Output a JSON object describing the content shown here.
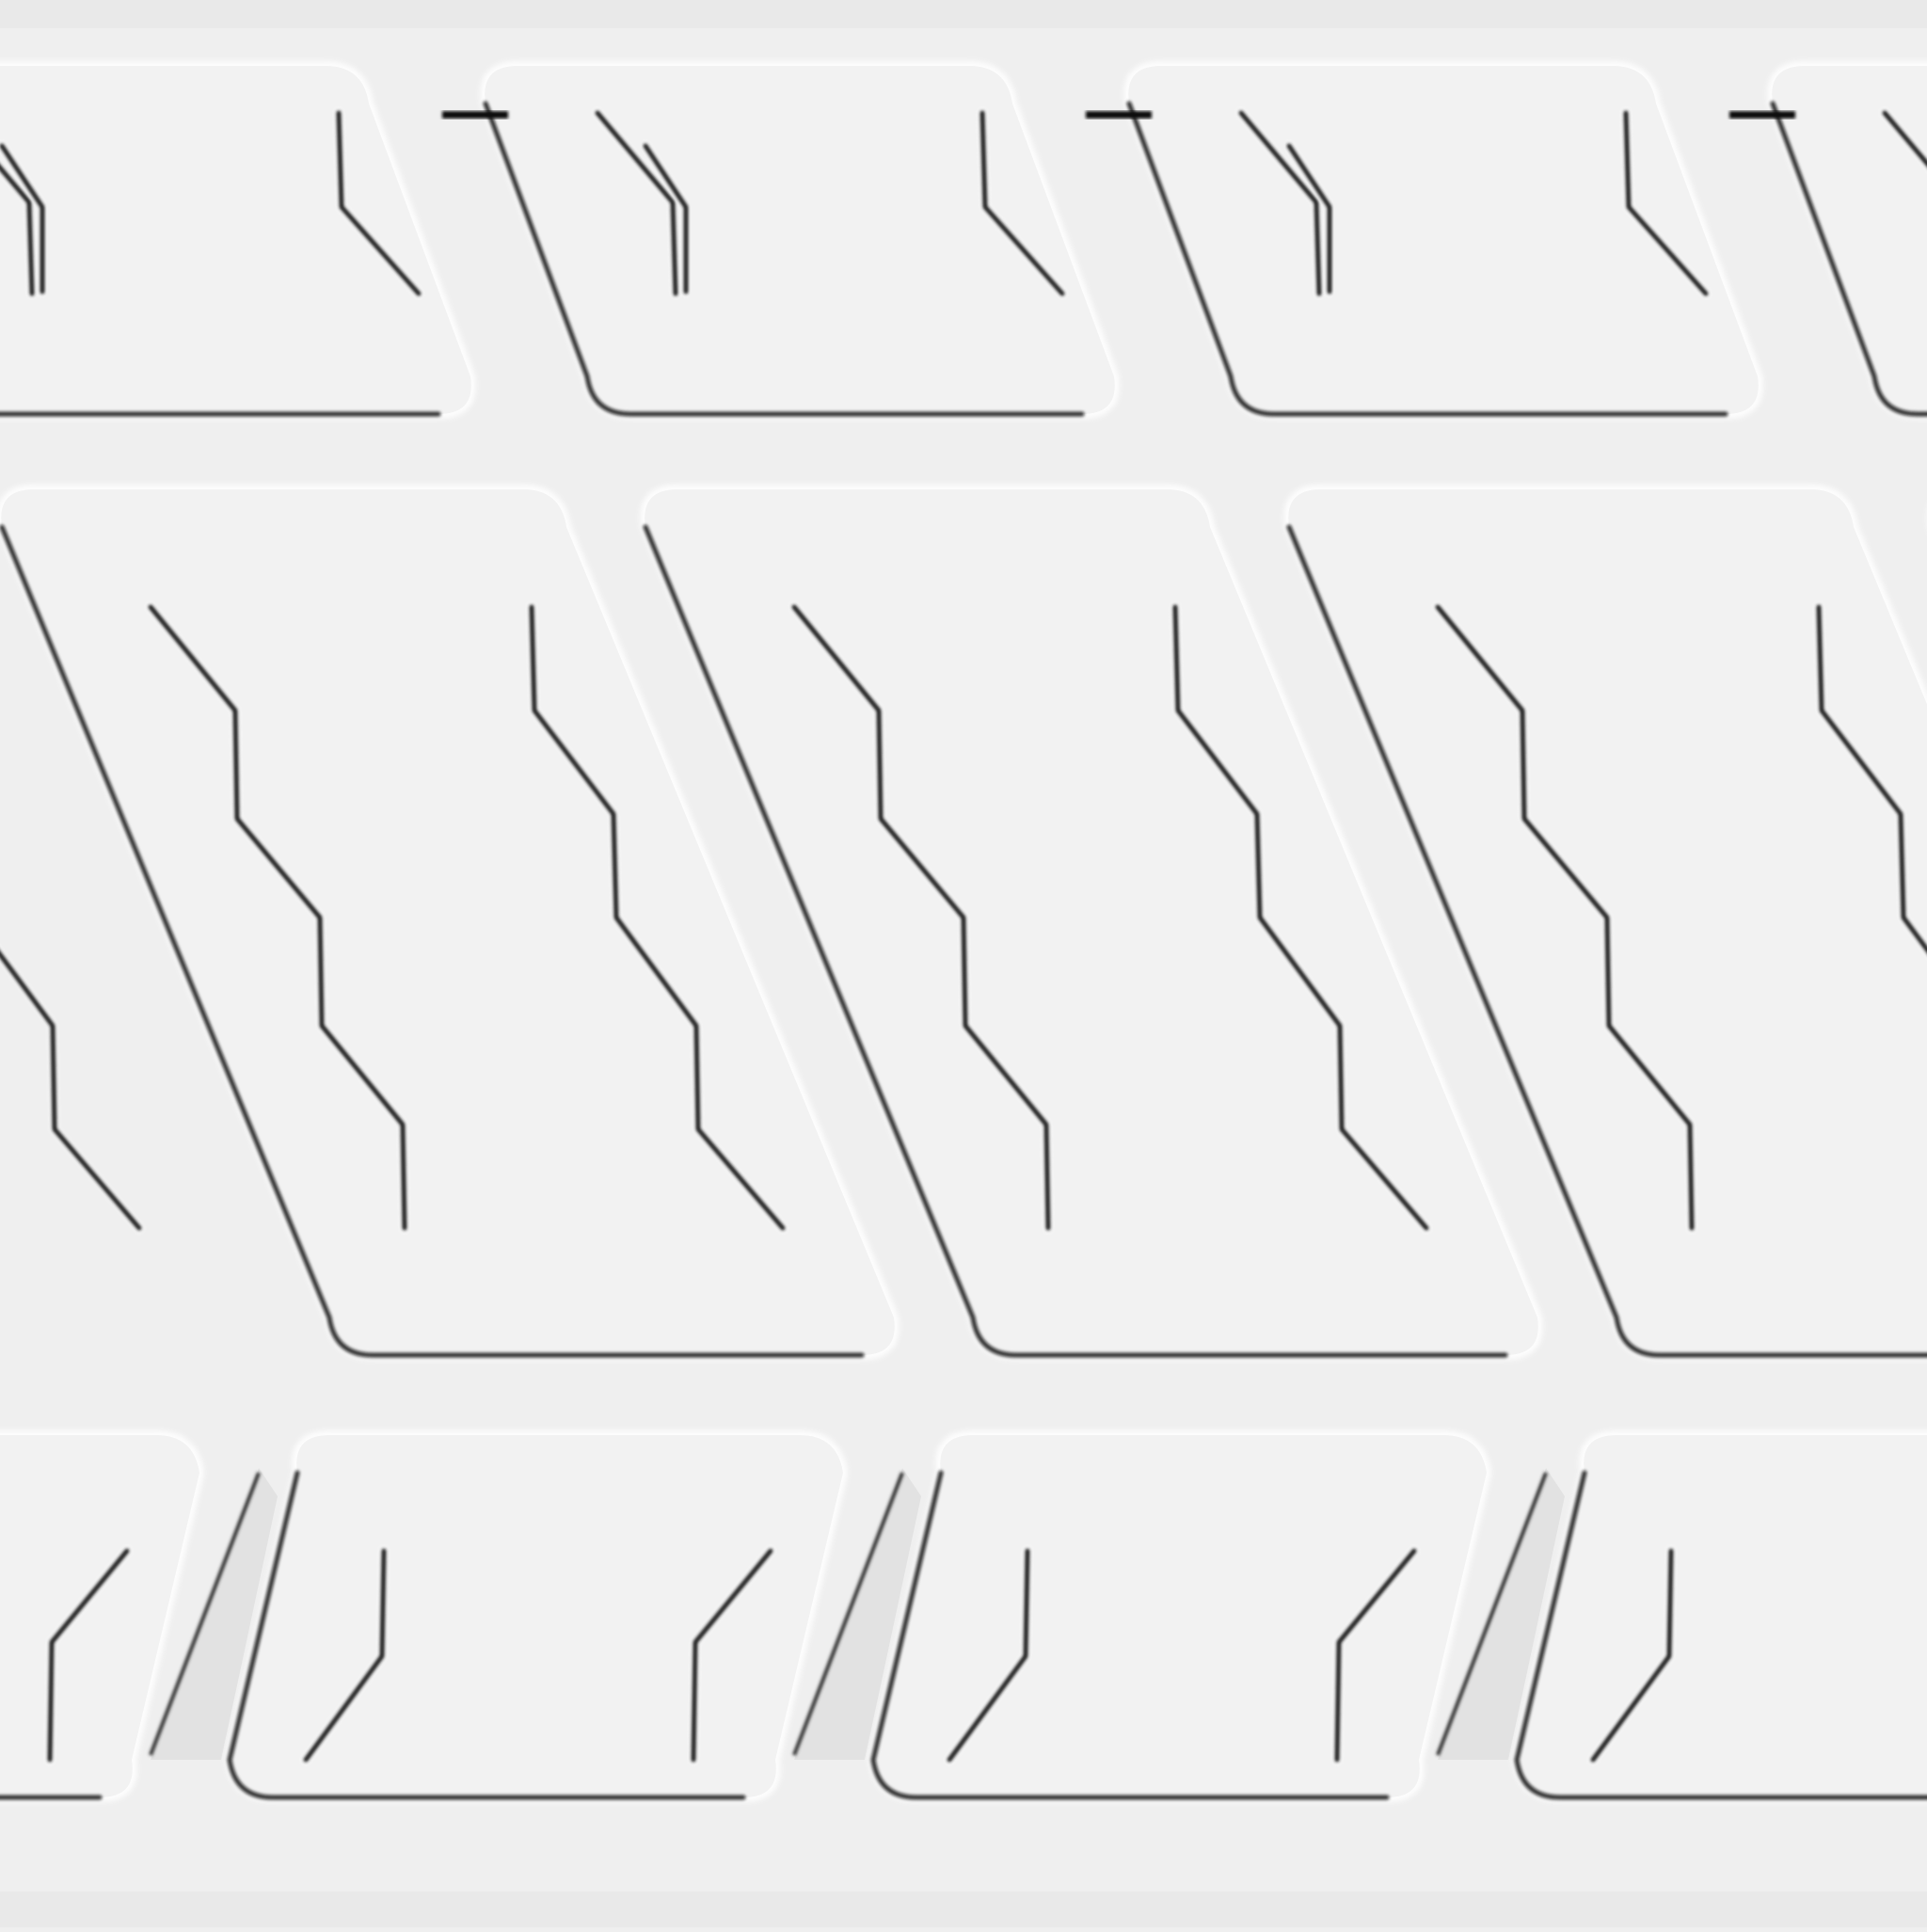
{
  "texture": {
    "kind": "tire-tread-relief",
    "description_visible_text": "",
    "colors": {
      "surface": "#efefef",
      "block": "#f2f2f2",
      "groove": "#e4e4e4",
      "shadow": "#0b0b0b",
      "highlight": "#ffffff"
    },
    "rows": [
      {
        "name": "top-row",
        "block_count": 4,
        "sipes_per_block": 3
      },
      {
        "name": "middle-row",
        "block_count": 4,
        "sipes_per_block": 2
      },
      {
        "name": "bottom-row",
        "block_count": 4,
        "sipes_per_block": 2
      }
    ]
  }
}
